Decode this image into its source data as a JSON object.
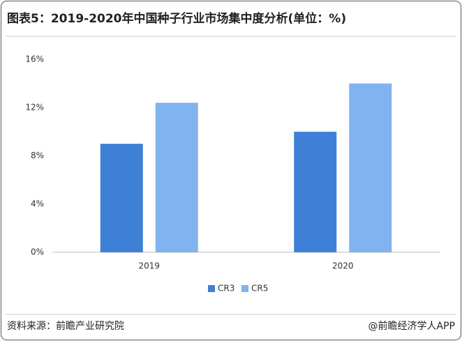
{
  "chart_data": {
    "type": "bar",
    "title": "图表5：2019-2020年中国种子行业市场集中度分析(单位：%)",
    "categories": [
      "2019",
      "2020"
    ],
    "series": [
      {
        "name": "CR3",
        "color": "#3d80d6",
        "values": [
          9.0,
          10.0
        ]
      },
      {
        "name": "CR5",
        "color": "#80b3ef",
        "values": [
          12.4,
          14.0
        ]
      }
    ],
    "ylim": [
      0,
      16
    ],
    "yticks": [
      {
        "value": 0,
        "label": "0%"
      },
      {
        "value": 4,
        "label": "4%"
      },
      {
        "value": 8,
        "label": "8%"
      },
      {
        "value": 12,
        "label": "12%"
      },
      {
        "value": 16,
        "label": "16%"
      }
    ],
    "grid": false,
    "legend": "bottom",
    "source": "资料来源：前瞻产业研究院",
    "credit": "@前瞻经济学人APP"
  }
}
